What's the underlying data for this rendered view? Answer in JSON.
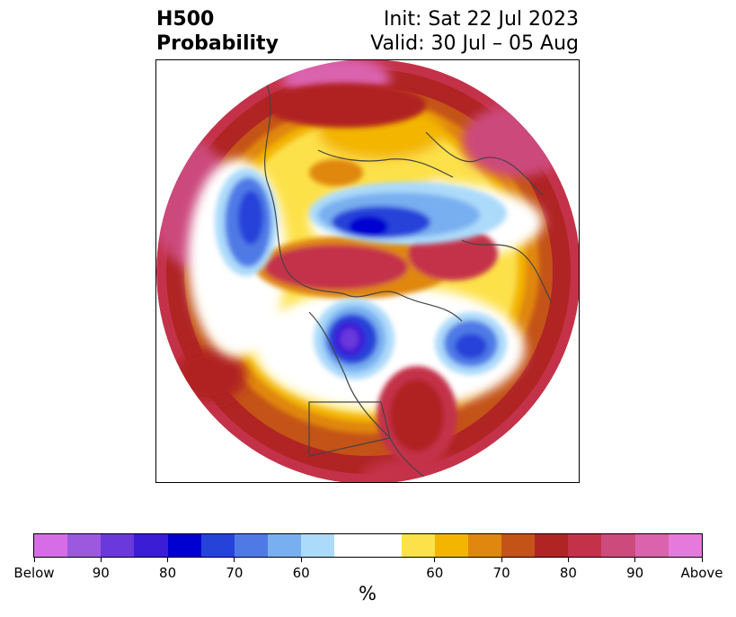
{
  "header": {
    "title_line1": "H500",
    "title_line2": "Probability",
    "init": "Init: Sat 22 Jul 2023",
    "valid": "Valid: 30 Jul – 05 Aug"
  },
  "colorbar": {
    "unit": "%",
    "colors": [
      "#d66de6",
      "#9c59e0",
      "#6b38db",
      "#3b1dd6",
      "#0000d0",
      "#2643d9",
      "#4f7ae6",
      "#78aff0",
      "#acdafa",
      "#ffffff",
      "#ffffff",
      "#fde14a",
      "#f3b500",
      "#e0870f",
      "#c45318",
      "#b02424",
      "#c43249",
      "#cc4a7c",
      "#db62ad",
      "#e679dc"
    ],
    "tick_labels": [
      "Below",
      "90",
      "80",
      "70",
      "60",
      "60",
      "70",
      "80",
      "90",
      "Above"
    ]
  },
  "colors": {
    "above_high": "#c43249",
    "above_mid": "#b02424",
    "warm": "#f3b500",
    "below_high": "#0000d0",
    "below_mid": "#4f7ae6"
  }
}
